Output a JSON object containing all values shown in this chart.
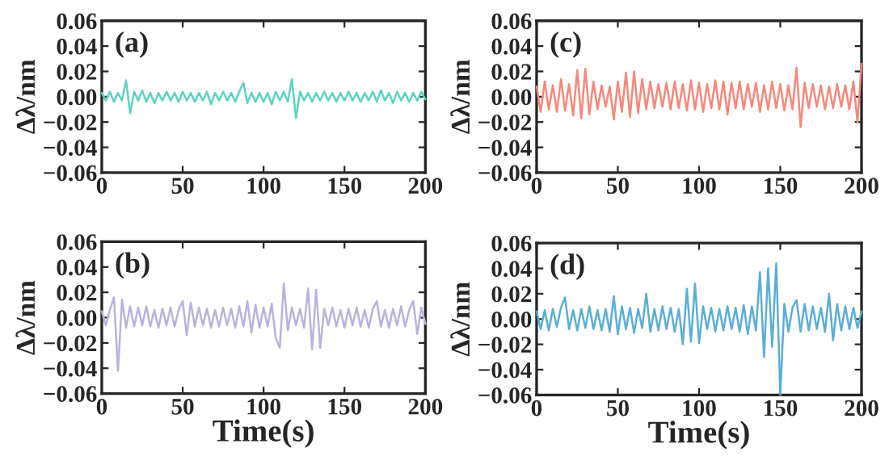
{
  "chart_data": [
    {
      "type": "line",
      "ylabel": "Δλ/nm",
      "annotations": [
        "(a)"
      ],
      "xlim": [
        0,
        200
      ],
      "ylim": [
        -0.06,
        0.06
      ],
      "xticks": [
        0,
        50,
        100,
        150,
        200
      ],
      "yticks": [
        {
          "value": -0.06,
          "label": "−0.06"
        },
        {
          "value": -0.04,
          "label": "−0.04"
        },
        {
          "value": -0.02,
          "label": "−0.02"
        },
        {
          "value": 0,
          "label": "0.00"
        },
        0.02,
        0.04,
        0.06
      ],
      "x": [
        0,
        2.5,
        5,
        7.5,
        10,
        12.5,
        15,
        17.5,
        20,
        22.5,
        25,
        27.5,
        30,
        32.5,
        35,
        37.5,
        40,
        42.5,
        45,
        47.5,
        50,
        52.5,
        55,
        57.5,
        60,
        62.5,
        65,
        67.5,
        70,
        72.5,
        75,
        77.5,
        80,
        82.5,
        85,
        87.5,
        90,
        92.5,
        95,
        97.5,
        100,
        102.5,
        105,
        107.5,
        110,
        112.5,
        115,
        117.5,
        120,
        122.5,
        125,
        127.5,
        130,
        132.5,
        135,
        137.5,
        140,
        142.5,
        145,
        147.5,
        150,
        152.5,
        155,
        157.5,
        160,
        162.5,
        165,
        167.5,
        170,
        172.5,
        175,
        177.5,
        180,
        182.5,
        185,
        187.5,
        190,
        192.5,
        195,
        197.5,
        200
      ],
      "series": [
        {
          "color": "#5dd3c1",
          "values": [
            0.003,
            -0.003,
            0.004,
            -0.004,
            0.003,
            -0.003,
            0.013,
            -0.013,
            0.004,
            -0.003,
            0.005,
            -0.004,
            0.003,
            -0.005,
            0.003,
            -0.003,
            0.004,
            -0.003,
            0.003,
            -0.004,
            0.004,
            -0.003,
            0.003,
            -0.004,
            0.003,
            -0.003,
            0.004,
            -0.006,
            0.003,
            -0.003,
            0.004,
            -0.003,
            0.003,
            -0.004,
            0.004,
            0.011,
            -0.005,
            0.003,
            -0.004,
            0.003,
            -0.004,
            0.003,
            -0.006,
            0.004,
            -0.003,
            0.004,
            -0.004,
            0.014,
            -0.017,
            0.004,
            -0.003,
            0.003,
            -0.004,
            0.003,
            -0.003,
            0.004,
            -0.003,
            0.003,
            -0.004,
            0.003,
            -0.003,
            0.004,
            -0.003,
            0.003,
            -0.004,
            0.003,
            -0.003,
            0.004,
            -0.004,
            0.005,
            -0.003,
            0.003,
            -0.005,
            0.004,
            -0.003,
            0.003,
            -0.004,
            0.003,
            -0.003,
            0.004,
            -0.002
          ]
        }
      ],
      "grid": false,
      "legend": false
    },
    {
      "type": "line",
      "ylabel": "Δλ/nm",
      "annotations": [
        "(c)"
      ],
      "xlim": [
        0,
        200
      ],
      "ylim": [
        -0.06,
        0.06
      ],
      "xticks": [
        0,
        50,
        100,
        150,
        200
      ],
      "yticks": [
        {
          "value": -0.06,
          "label": "−0.06"
        },
        {
          "value": -0.04,
          "label": "−0.04"
        },
        {
          "value": -0.02,
          "label": "−0.02"
        },
        {
          "value": 0,
          "label": "0.00"
        },
        0.02,
        0.04,
        0.06
      ],
      "x": [
        0,
        2.5,
        5,
        7.5,
        10,
        12.5,
        15,
        17.5,
        20,
        22.5,
        25,
        27.5,
        30,
        32.5,
        35,
        37.5,
        40,
        42.5,
        45,
        47.5,
        50,
        52.5,
        55,
        57.5,
        60,
        62.5,
        65,
        67.5,
        70,
        72.5,
        75,
        77.5,
        80,
        82.5,
        85,
        87.5,
        90,
        92.5,
        95,
        97.5,
        100,
        102.5,
        105,
        107.5,
        110,
        112.5,
        115,
        117.5,
        120,
        122.5,
        125,
        127.5,
        130,
        132.5,
        135,
        137.5,
        140,
        142.5,
        145,
        147.5,
        150,
        152.5,
        155,
        157.5,
        160,
        162.5,
        165,
        167.5,
        170,
        172.5,
        175,
        177.5,
        180,
        182.5,
        185,
        187.5,
        190,
        192.5,
        195,
        197.5,
        200
      ],
      "series": [
        {
          "color": "#f7877a",
          "values": [
            0.008,
            -0.012,
            0.012,
            -0.01,
            0.009,
            -0.012,
            0.014,
            -0.011,
            0.01,
            -0.015,
            0.021,
            -0.017,
            0.022,
            -0.014,
            0.012,
            -0.01,
            0.009,
            -0.008,
            0.008,
            -0.018,
            0.012,
            -0.012,
            0.019,
            -0.016,
            0.02,
            -0.013,
            0.014,
            -0.01,
            0.012,
            -0.009,
            0.01,
            -0.008,
            0.011,
            -0.01,
            0.012,
            -0.009,
            0.01,
            -0.011,
            0.013,
            -0.01,
            0.011,
            -0.012,
            0.01,
            -0.009,
            0.013,
            -0.01,
            0.012,
            -0.014,
            0.011,
            -0.009,
            0.012,
            -0.01,
            0.01,
            -0.008,
            0.011,
            -0.012,
            0.009,
            -0.01,
            0.012,
            -0.009,
            0.01,
            -0.011,
            0.009,
            -0.01,
            0.023,
            -0.024,
            0.011,
            -0.009,
            0.01,
            -0.008,
            0.009,
            -0.01,
            0.008,
            -0.009,
            0.01,
            -0.008,
            0.009,
            -0.01,
            0.012,
            -0.02,
            0.026
          ]
        }
      ],
      "grid": false,
      "legend": false
    },
    {
      "type": "line",
      "xlabel": "Time(s)",
      "ylabel": "Δλ/nm",
      "annotations": [
        "(b)"
      ],
      "xlim": [
        0,
        200
      ],
      "ylim": [
        -0.06,
        0.06
      ],
      "xticks": [
        0,
        50,
        100,
        150,
        200
      ],
      "yticks": [
        {
          "value": -0.06,
          "label": "−0.06"
        },
        {
          "value": -0.04,
          "label": "−0.04"
        },
        {
          "value": -0.02,
          "label": "−0.02"
        },
        {
          "value": 0,
          "label": "0.00"
        },
        0.02,
        0.04,
        0.06
      ],
      "x": [
        0,
        2.5,
        5,
        7.5,
        10,
        12.5,
        15,
        17.5,
        20,
        22.5,
        25,
        27.5,
        30,
        32.5,
        35,
        37.5,
        40,
        42.5,
        45,
        47.5,
        50,
        52.5,
        55,
        57.5,
        60,
        62.5,
        65,
        67.5,
        70,
        72.5,
        75,
        77.5,
        80,
        82.5,
        85,
        87.5,
        90,
        92.5,
        95,
        97.5,
        100,
        102.5,
        105,
        107.5,
        110,
        112.5,
        115,
        117.5,
        120,
        122.5,
        125,
        127.5,
        130,
        132.5,
        135,
        137.5,
        140,
        142.5,
        145,
        147.5,
        150,
        152.5,
        155,
        157.5,
        160,
        162.5,
        165,
        167.5,
        170,
        172.5,
        175,
        177.5,
        180,
        182.5,
        185,
        187.5,
        190,
        192.5,
        195,
        197.5,
        200
      ],
      "series": [
        {
          "color": "#bab2de",
          "values": [
            0.005,
            -0.006,
            0.006,
            0.016,
            -0.042,
            0.014,
            -0.008,
            0.009,
            -0.007,
            0.008,
            -0.006,
            0.009,
            -0.007,
            0.006,
            -0.008,
            0.007,
            -0.006,
            0.008,
            -0.007,
            0.006,
            0.013,
            -0.014,
            0.012,
            -0.007,
            0.008,
            -0.006,
            0.007,
            -0.008,
            0.006,
            -0.007,
            0.008,
            -0.006,
            0.007,
            -0.008,
            0.009,
            -0.007,
            0.013,
            -0.012,
            0.01,
            -0.008,
            0.008,
            -0.007,
            0.011,
            -0.016,
            -0.024,
            0.027,
            -0.01,
            0.008,
            -0.006,
            0.007,
            -0.008,
            0.023,
            -0.025,
            0.022,
            -0.024,
            0.007,
            -0.006,
            0.008,
            -0.007,
            0.006,
            -0.008,
            0.007,
            -0.006,
            0.008,
            -0.007,
            0.006,
            -0.008,
            0.007,
            0.013,
            -0.007,
            0.006,
            -0.008,
            0.007,
            -0.006,
            0.009,
            -0.007,
            0.006,
            0.013,
            -0.013,
            0.008,
            -0.005
          ]
        }
      ],
      "grid": false,
      "legend": false
    },
    {
      "type": "line",
      "xlabel": "Time(s)",
      "ylabel": "Δλ/nm",
      "annotations": [
        "(d)"
      ],
      "xlim": [
        0,
        200
      ],
      "ylim": [
        -0.06,
        0.06
      ],
      "xticks": [
        0,
        50,
        100,
        150,
        200
      ],
      "yticks": [
        {
          "value": -0.06,
          "label": "−0.06"
        },
        {
          "value": -0.04,
          "label": "−0.04"
        },
        {
          "value": -0.02,
          "label": "−0.02"
        },
        {
          "value": 0,
          "label": "0.00"
        },
        0.02,
        0.04,
        0.06
      ],
      "x": [
        0,
        2.5,
        5,
        7.5,
        10,
        12.5,
        15,
        17.5,
        20,
        22.5,
        25,
        27.5,
        30,
        32.5,
        35,
        37.5,
        40,
        42.5,
        45,
        47.5,
        50,
        52.5,
        55,
        57.5,
        60,
        62.5,
        65,
        67.5,
        70,
        72.5,
        75,
        77.5,
        80,
        82.5,
        85,
        87.5,
        90,
        92.5,
        95,
        97.5,
        100,
        102.5,
        105,
        107.5,
        110,
        112.5,
        115,
        117.5,
        120,
        122.5,
        125,
        127.5,
        130,
        132.5,
        135,
        137.5,
        140,
        142.5,
        145,
        147.5,
        150,
        152.5,
        155,
        157.5,
        160,
        162.5,
        165,
        167.5,
        170,
        172.5,
        175,
        177.5,
        180,
        182.5,
        185,
        187.5,
        190,
        192.5,
        195,
        197.5,
        200
      ],
      "series": [
        {
          "color": "#5aaed6",
          "values": [
            0.006,
            -0.008,
            0.007,
            -0.009,
            0.008,
            -0.006,
            0.009,
            0.017,
            -0.008,
            0.007,
            -0.009,
            0.008,
            -0.007,
            0.01,
            -0.008,
            0.007,
            -0.009,
            0.008,
            -0.01,
            0.018,
            -0.012,
            0.01,
            -0.008,
            0.009,
            -0.011,
            0.008,
            -0.007,
            0.02,
            -0.01,
            0.008,
            -0.009,
            0.01,
            -0.008,
            0.009,
            -0.01,
            0.008,
            -0.02,
            0.024,
            -0.018,
            0.028,
            -0.019,
            0.01,
            -0.008,
            0.009,
            -0.01,
            0.008,
            -0.009,
            0.01,
            -0.008,
            0.009,
            -0.01,
            0.011,
            -0.012,
            0.01,
            -0.009,
            0.037,
            -0.03,
            0.04,
            -0.022,
            0.044,
            -0.06,
            0.012,
            -0.01,
            0.009,
            0.015,
            -0.01,
            0.012,
            -0.009,
            0.01,
            -0.008,
            0.009,
            -0.01,
            0.02,
            -0.017,
            0.012,
            -0.009,
            0.01,
            -0.008,
            0.009,
            -0.007,
            0.006
          ]
        }
      ],
      "grid": false,
      "legend": false
    }
  ]
}
